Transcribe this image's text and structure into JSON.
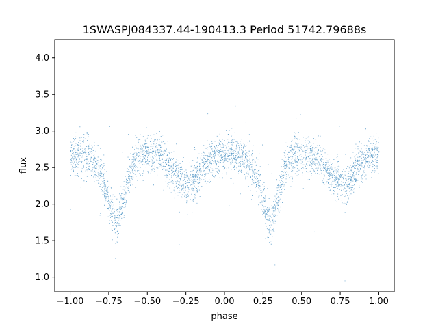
{
  "chart_data": {
    "type": "scatter",
    "title": "1SWASPJ084337.44-190413.3 Period 51742.79688s",
    "xlabel": "phase",
    "ylabel": "flux",
    "xlim": [
      -1.1,
      1.1
    ],
    "ylim": [
      0.8,
      4.25
    ],
    "xticks": [
      -1.0,
      -0.75,
      -0.5,
      -0.25,
      0.0,
      0.25,
      0.5,
      0.75,
      1.0
    ],
    "xtick_labels": [
      "−1.00",
      "−0.75",
      "−0.50",
      "−0.25",
      "0.00",
      "0.25",
      "0.50",
      "0.75",
      "1.00"
    ],
    "yticks": [
      1.0,
      1.5,
      2.0,
      2.5,
      3.0,
      3.5,
      4.0
    ],
    "ytick_labels": [
      "1.0",
      "1.5",
      "2.0",
      "2.5",
      "3.0",
      "3.5",
      "4.0"
    ],
    "grid": false,
    "point_color": "#1f77b4",
    "series": [
      {
        "light_curve": {
          "x": [
            -1.0,
            -0.95,
            -0.9,
            -0.85,
            -0.8,
            -0.75,
            -0.7,
            -0.65,
            -0.6,
            -0.55,
            -0.5,
            -0.45,
            -0.4,
            -0.35,
            -0.3,
            -0.25,
            -0.2,
            -0.15,
            -0.1,
            -0.05,
            0.0,
            0.05,
            0.1,
            0.15,
            0.2,
            0.25,
            0.3,
            0.35,
            0.4,
            0.45,
            0.5,
            0.55,
            0.6,
            0.65,
            0.7,
            0.75,
            0.8,
            0.85,
            0.9,
            0.95,
            1.0
          ],
          "y": [
            2.65,
            2.68,
            2.65,
            2.6,
            2.4,
            2.05,
            1.7,
            2.15,
            2.55,
            2.68,
            2.7,
            2.68,
            2.62,
            2.5,
            2.38,
            2.28,
            2.3,
            2.45,
            2.58,
            2.66,
            2.7,
            2.68,
            2.65,
            2.6,
            2.4,
            2.05,
            1.7,
            2.15,
            2.55,
            2.68,
            2.7,
            2.68,
            2.62,
            2.5,
            2.38,
            2.28,
            2.3,
            2.45,
            2.58,
            2.66,
            2.7
          ],
          "scatter_sigma": 0.13,
          "n_points": 9000
        }
      }
    ]
  }
}
